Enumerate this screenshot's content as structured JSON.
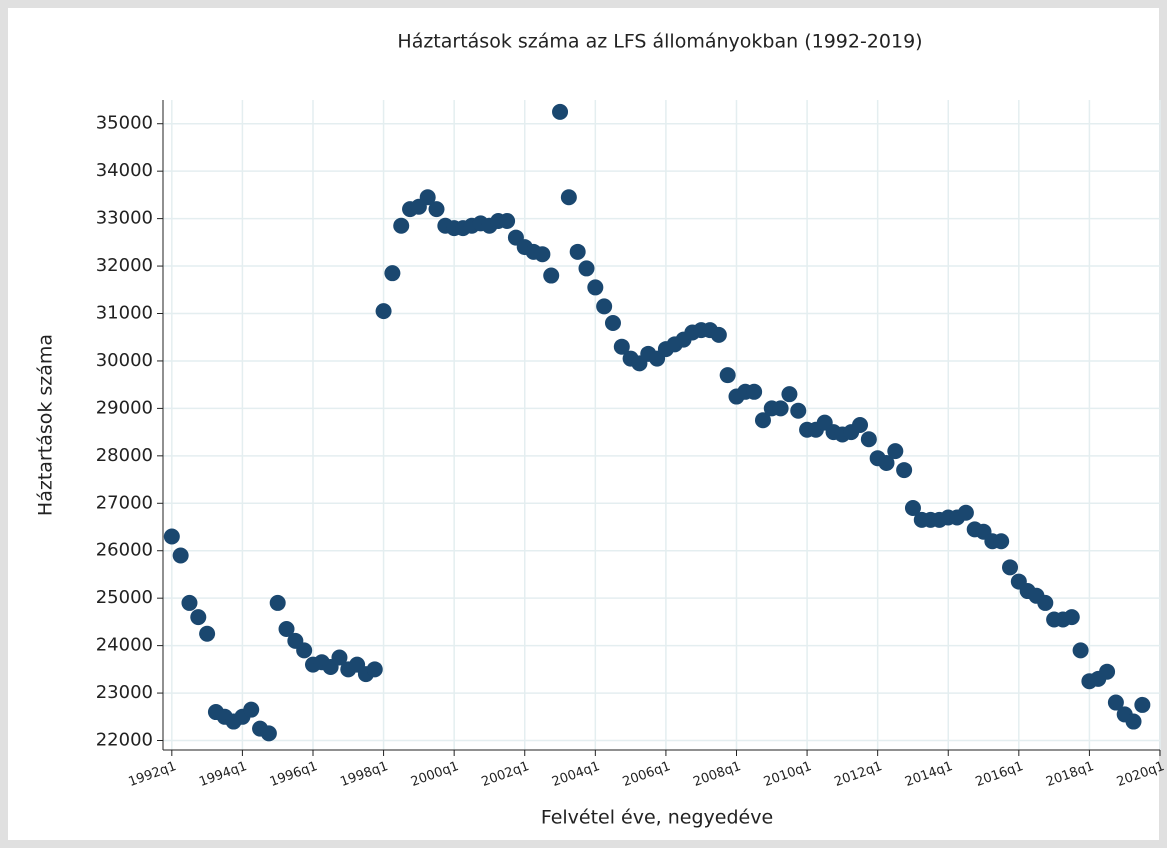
{
  "chart_data": {
    "type": "scatter",
    "title": "Háztartások száma az LFS állományokban (1992-2019)",
    "x_label": "Felvétel éve, negyedéve",
    "y_label": "Háztartások száma",
    "x": [
      128,
      129,
      130,
      131,
      132,
      133,
      134,
      135,
      136,
      137,
      138,
      139,
      140,
      141,
      142,
      143,
      144,
      145,
      146,
      147,
      148,
      149,
      150,
      151,
      152,
      153,
      154,
      155,
      156,
      157,
      158,
      159,
      160,
      161,
      162,
      163,
      164,
      165,
      166,
      167,
      168,
      169,
      170,
      171,
      172,
      173,
      174,
      175,
      176,
      177,
      178,
      179,
      180,
      181,
      182,
      183,
      184,
      185,
      186,
      187,
      188,
      189,
      190,
      191,
      192,
      193,
      194,
      195,
      196,
      197,
      198,
      199,
      200,
      201,
      202,
      203,
      204,
      205,
      206,
      207,
      208,
      209,
      210,
      211,
      212,
      213,
      214,
      215,
      216,
      217,
      218,
      219,
      220,
      221,
      222,
      223,
      224,
      225,
      226,
      227,
      228,
      229,
      230,
      231,
      232,
      233,
      234,
      235,
      236,
      237,
      238
    ],
    "series": [
      {
        "name": "Háztartások száma",
        "color": "#1a476f",
        "values": [
          26300,
          25900,
          24900,
          24600,
          24250,
          22600,
          22500,
          22400,
          22500,
          22650,
          22250,
          22150,
          24900,
          24350,
          24100,
          23900,
          23600,
          23650,
          23550,
          23750,
          23500,
          23600,
          23400,
          23500,
          31050,
          31850,
          32850,
          33200,
          33250,
          33450,
          33200,
          32850,
          32800,
          32800,
          32850,
          32900,
          32850,
          32950,
          32950,
          32600,
          32400,
          32300,
          32250,
          31800,
          35250,
          33450,
          32300,
          31950,
          31550,
          31150,
          30800,
          30300,
          30050,
          29950,
          30150,
          30050,
          30250,
          30350,
          30450,
          30600,
          30650,
          30650,
          30550,
          29700,
          29250,
          29350,
          29350,
          28750,
          29000,
          29000,
          29300,
          28950,
          28550,
          28550,
          28700,
          28500,
          28450,
          28500,
          28650,
          28350,
          27950,
          27850,
          28100,
          27700,
          26900,
          26650,
          26650,
          26650,
          26700,
          26700,
          26800,
          26450,
          26400,
          26200,
          26200,
          25650,
          25350,
          25150,
          25050,
          24900,
          24550,
          24550,
          24600,
          23900,
          23250,
          23300,
          23450,
          22800,
          22550,
          22400,
          22750
        ]
      }
    ],
    "xlim": [
      127,
      240
    ],
    "xticks": [
      {
        "value": 128,
        "label": "1992q1"
      },
      {
        "value": 136,
        "label": "1994q1"
      },
      {
        "value": 144,
        "label": "1996q1"
      },
      {
        "value": 152,
        "label": "1998q1"
      },
      {
        "value": 160,
        "label": "2000q1"
      },
      {
        "value": 168,
        "label": "2002q1"
      },
      {
        "value": 176,
        "label": "2004q1"
      },
      {
        "value": 184,
        "label": "2006q1"
      },
      {
        "value": 192,
        "label": "2008q1"
      },
      {
        "value": 200,
        "label": "2010q1"
      },
      {
        "value": 208,
        "label": "2012q1"
      },
      {
        "value": 216,
        "label": "2014q1"
      },
      {
        "value": 224,
        "label": "2016q1"
      },
      {
        "value": 232,
        "label": "2018q1"
      },
      {
        "value": 240,
        "label": "2020q1"
      }
    ],
    "ylim": [
      21800,
      35500
    ],
    "yticks": [
      22000,
      23000,
      24000,
      25000,
      26000,
      27000,
      28000,
      29000,
      30000,
      31000,
      32000,
      33000,
      34000,
      35000
    ],
    "grid": true
  }
}
